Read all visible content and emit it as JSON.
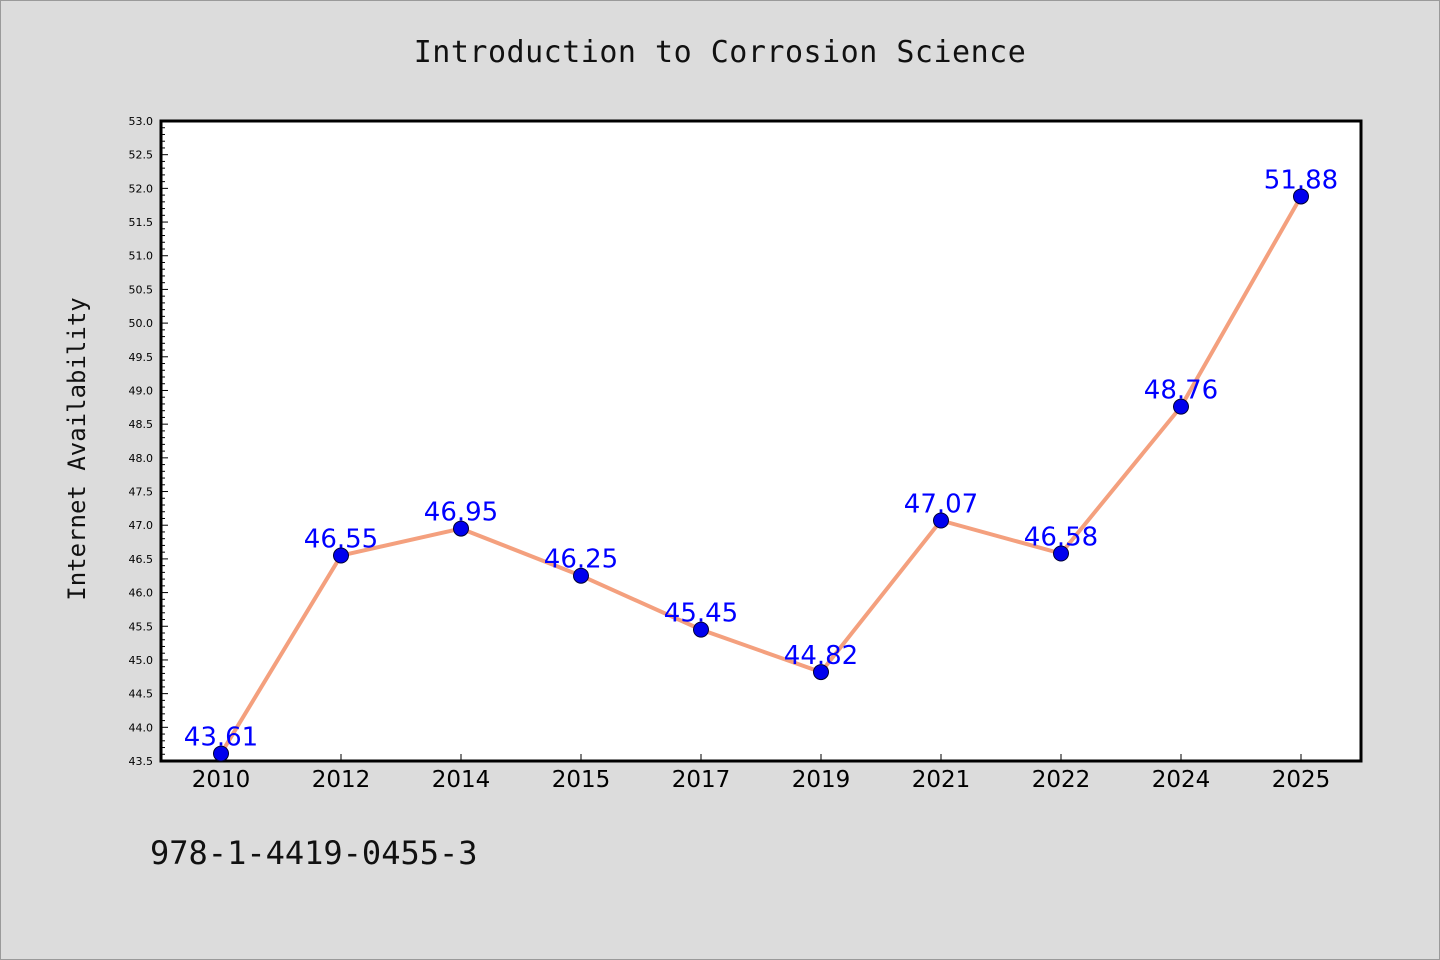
{
  "page": {
    "title": "Introduction to Corrosion Science",
    "footer": "978-1-4419-0455-3"
  },
  "colors": {
    "background": "#dcdcdc",
    "plot_background": "#ffffff",
    "line": "#f4a07e",
    "marker": "#0000ee",
    "data_label": "#0000ff",
    "axis": "#000000"
  },
  "chart_data": {
    "type": "line",
    "title": "Introduction to Corrosion Science",
    "xlabel": "",
    "ylabel": "Internet Availability",
    "categories": [
      "2010",
      "2012",
      "2014",
      "2015",
      "2017",
      "2019",
      "2021",
      "2022",
      "2024",
      "2025"
    ],
    "series": [
      {
        "values": [
          43.61,
          46.55,
          46.95,
          46.25,
          45.45,
          44.82,
          47.07,
          46.58,
          48.76,
          51.88
        ]
      }
    ],
    "data_labels": [
      "43.61",
      "46.55",
      "46.95",
      "46.25",
      "45.45",
      "44.82",
      "47.07",
      "46.58",
      "48.76",
      "51.88"
    ],
    "ylim": [
      43.5,
      53.0
    ],
    "yticks": [
      "43.5",
      "44.0",
      "44.5",
      "45.0",
      "45.5",
      "46.0",
      "46.5",
      "47.0",
      "47.5",
      "48.0",
      "48.5",
      "49.0",
      "49.5",
      "50.0",
      "50.5",
      "51.0",
      "51.5",
      "52.0",
      "52.5",
      "53.0"
    ],
    "grid": false,
    "legend": "none",
    "marker": "circle"
  }
}
